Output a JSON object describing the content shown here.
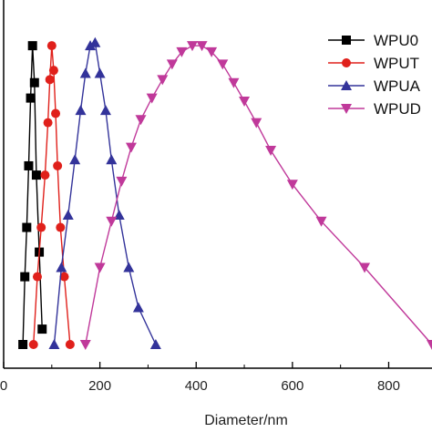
{
  "chart_data": {
    "type": "line",
    "title": "",
    "xlabel": "Diameter/nm",
    "ylabel": "",
    "xlim": [
      0,
      890
    ],
    "ylim": [
      0,
      1.05
    ],
    "x_ticks": [
      0,
      200,
      400,
      600,
      800
    ],
    "x_tick_labels": [
      "0",
      "200",
      "400",
      "600",
      "800"
    ],
    "grid": false,
    "legend_position": "top-right",
    "series": [
      {
        "name": "WPU0",
        "color": "#000000",
        "marker": "square",
        "x": [
          40,
          44,
          48,
          52,
          56,
          60,
          64,
          68,
          74,
          80
        ],
        "y": [
          0.0,
          0.22,
          0.38,
          0.58,
          0.8,
          0.97,
          0.85,
          0.55,
          0.3,
          0.05
        ]
      },
      {
        "name": "WPUT",
        "color": "#e0201b",
        "marker": "circle",
        "x": [
          62,
          70,
          78,
          86,
          92,
          96,
          100,
          104,
          108,
          112,
          118,
          126,
          138
        ],
        "y": [
          0.0,
          0.22,
          0.38,
          0.55,
          0.72,
          0.86,
          0.97,
          0.89,
          0.75,
          0.58,
          0.38,
          0.22,
          0.0
        ]
      },
      {
        "name": "WPUA",
        "color": "#33339a",
        "marker": "triangle-up",
        "x": [
          105,
          120,
          134,
          148,
          160,
          170,
          180,
          190,
          200,
          212,
          224,
          240,
          260,
          280,
          316
        ],
        "y": [
          0.0,
          0.25,
          0.42,
          0.6,
          0.76,
          0.88,
          0.97,
          0.98,
          0.88,
          0.76,
          0.6,
          0.42,
          0.25,
          0.12,
          0.0
        ]
      },
      {
        "name": "WPUD",
        "color": "#c0399a",
        "marker": "triangle-down",
        "x": [
          170,
          200,
          224,
          245,
          265,
          285,
          308,
          330,
          350,
          370,
          392,
          412,
          432,
          455,
          478,
          500,
          525,
          555,
          600,
          660,
          750,
          890
        ],
        "y": [
          0.0,
          0.25,
          0.4,
          0.53,
          0.64,
          0.73,
          0.8,
          0.86,
          0.91,
          0.95,
          0.97,
          0.97,
          0.95,
          0.91,
          0.85,
          0.79,
          0.72,
          0.63,
          0.52,
          0.4,
          0.25,
          0.0
        ]
      }
    ]
  }
}
